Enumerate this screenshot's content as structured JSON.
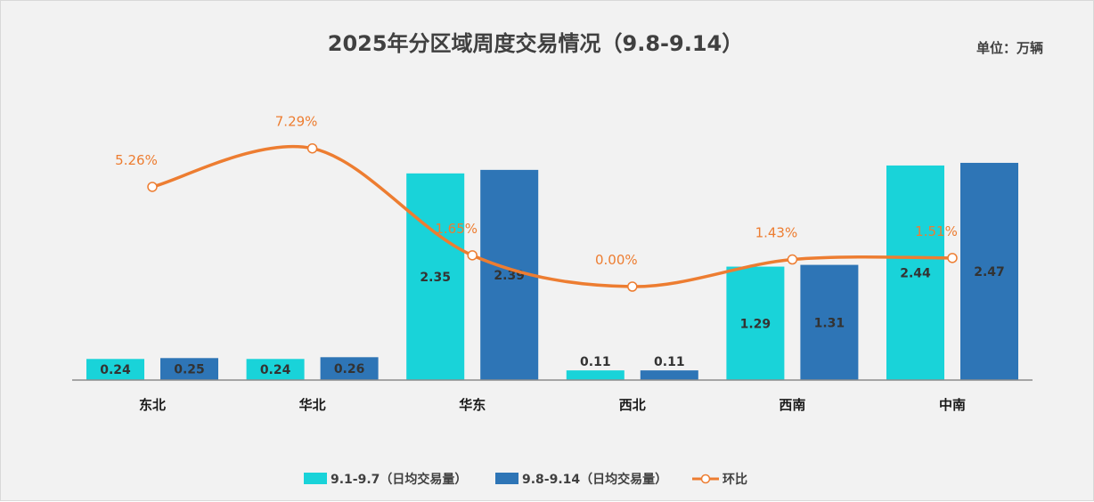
{
  "chart_data": {
    "type": "bar",
    "title": "2025年分区域周度交易情况（9.8-9.14）",
    "unit": "单位：万辆",
    "categories": [
      "东北",
      "华北",
      "华东",
      "西北",
      "西南",
      "中南"
    ],
    "series": [
      {
        "name": "9.1-9.7（日均交易量）",
        "type": "bar",
        "color": "#19d3d9",
        "values": [
          0.24,
          0.24,
          2.35,
          0.11,
          1.29,
          2.44
        ]
      },
      {
        "name": "9.8-9.14（日均交易量）",
        "type": "bar",
        "color": "#2e75b6",
        "values": [
          0.25,
          0.26,
          2.39,
          0.11,
          1.31,
          2.47
        ]
      },
      {
        "name": "环比",
        "type": "line",
        "axis": "secondary",
        "smooth": true,
        "color": "#ed7d31",
        "values": [
          5.26,
          7.29,
          1.65,
          0.0,
          1.43,
          1.51
        ],
        "labels": [
          "5.26%",
          "7.29%",
          "1.65%",
          "0.00%",
          "1.43%",
          "1.51%"
        ]
      }
    ],
    "grid": false,
    "legend": "bottom"
  }
}
